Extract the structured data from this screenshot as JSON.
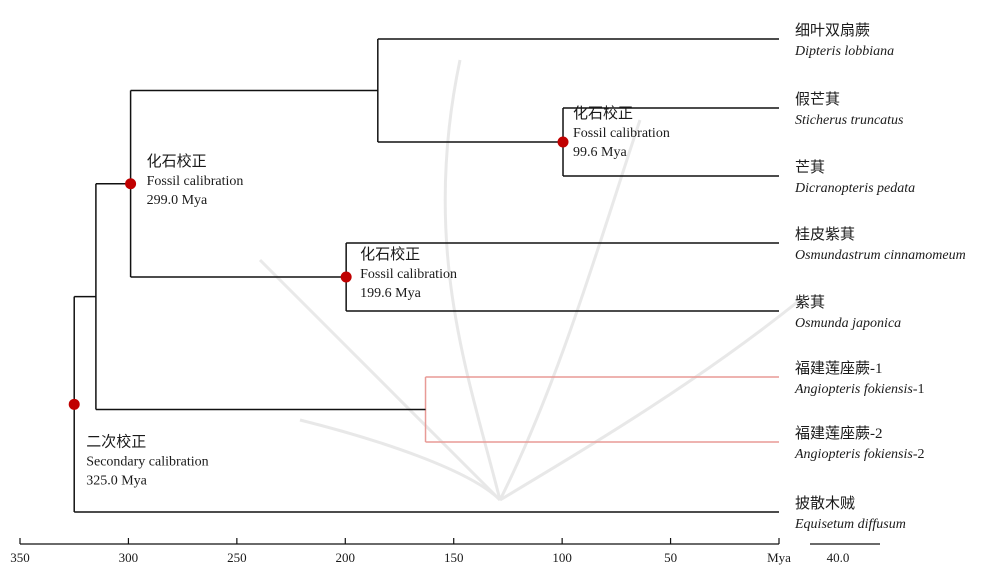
{
  "taxa": [
    {
      "cn": "细叶双扇蕨",
      "sci": "Dipteris lobbiana",
      "suffix": ""
    },
    {
      "cn": "假芒萁",
      "sci": "Sticherus truncatus",
      "suffix": ""
    },
    {
      "cn": "芒萁",
      "sci": "Dicranopteris pedata",
      "suffix": ""
    },
    {
      "cn": "桂皮紫萁",
      "sci": "Osmundastrum cinnamomeum",
      "suffix": ""
    },
    {
      "cn": "紫萁",
      "sci": "Osmunda japonica",
      "suffix": ""
    },
    {
      "cn": "福建莲座蕨-1",
      "sci": "Angiopteris fokiensis",
      "suffix": "-1"
    },
    {
      "cn": "福建莲座蕨-2",
      "sci": "Angiopteris fokiensis",
      "suffix": "-2"
    },
    {
      "cn": "披散木贼",
      "sci": "Equisetum diffusum",
      "suffix": ""
    }
  ],
  "calibrations": [
    {
      "cn": "化石校正",
      "en": "Fossil calibration",
      "age": "99.6 Mya"
    },
    {
      "cn": "化石校正",
      "en": "Fossil calibration",
      "age": "299.0 Mya"
    },
    {
      "cn": "化石校正",
      "en": "Fossil calibration",
      "age": "199.6 Mya"
    },
    {
      "cn": "二次校正",
      "en": "Secondary calibration",
      "age": "325.0 Mya"
    }
  ],
  "axis": {
    "ticks": [
      350,
      300,
      250,
      200,
      150,
      100,
      50
    ],
    "unit": "Mya"
  },
  "scale_bar": {
    "label": "40.0"
  },
  "tree": {
    "node_ages_mya": {
      "root": 325.0,
      "ingroup": 315,
      "leptosporangiate": 299.0,
      "gleich_dipteris": 185,
      "gleicheniaceae": 99.6,
      "osmundaceae": 199.6,
      "angiopteris": 163,
      "tips": 0
    },
    "highlight_clade": "angiopteris",
    "colors": {
      "branch": "#111111",
      "highlight": "#e89a96",
      "node": "#c00000"
    }
  }
}
